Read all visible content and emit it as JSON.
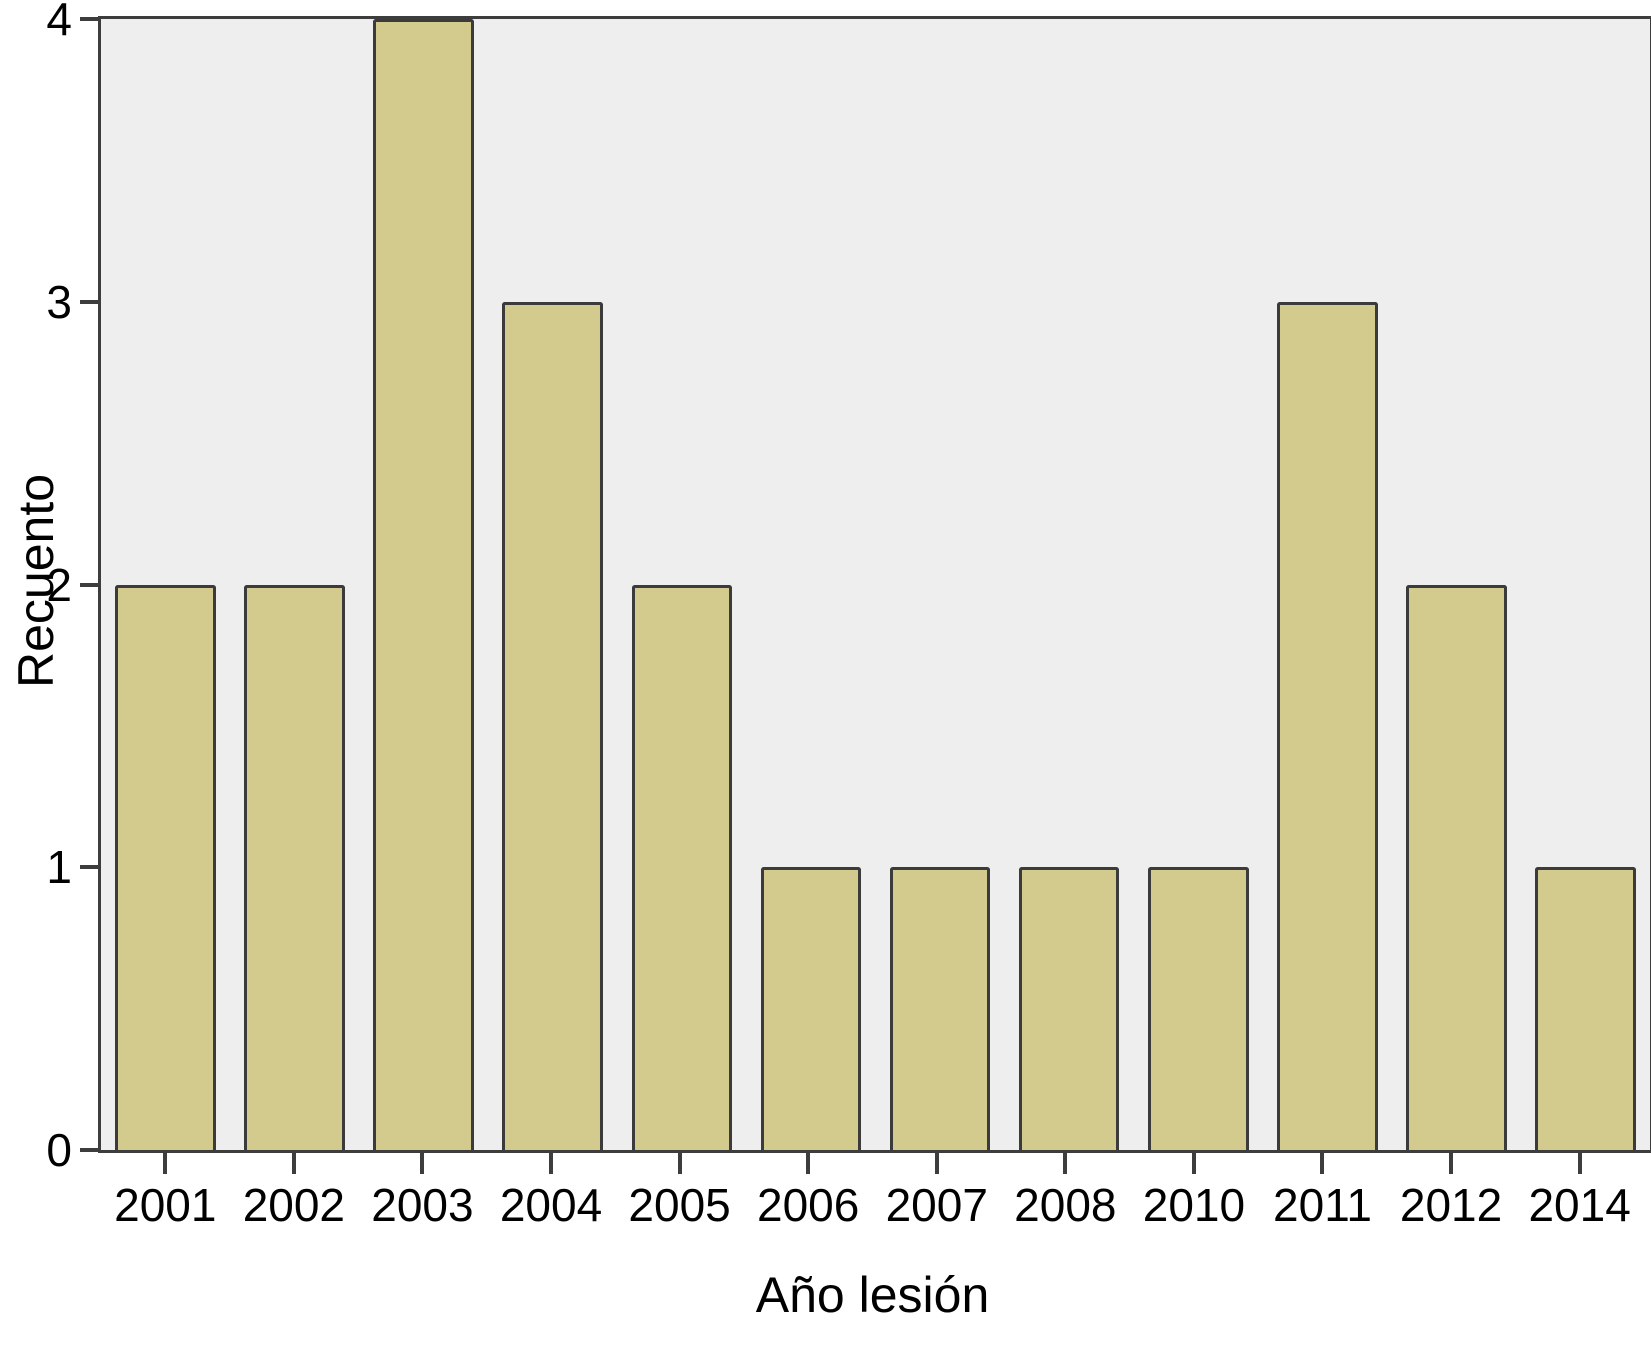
{
  "chart_data": {
    "type": "bar",
    "title": "",
    "categories": [
      "2001",
      "2002",
      "2003",
      "2004",
      "2005",
      "2006",
      "2007",
      "2008",
      "2010",
      "2011",
      "2012",
      "2014"
    ],
    "values": [
      2,
      2,
      4,
      3,
      2,
      1,
      1,
      1,
      1,
      3,
      2,
      1
    ],
    "xlabel": "Año lesión",
    "ylabel": "Recuento",
    "ylim": [
      0,
      4
    ],
    "yticks": [
      0,
      1,
      2,
      3,
      4
    ],
    "grid": false,
    "legend_position": "none",
    "colors": {
      "bar_fill": "#d3ca8d",
      "bar_border": "#3b3b3b",
      "plot_background": "#eeeeee",
      "frame": "#3d3d3d",
      "page_background": "#ffffff",
      "text": "#000000"
    }
  }
}
